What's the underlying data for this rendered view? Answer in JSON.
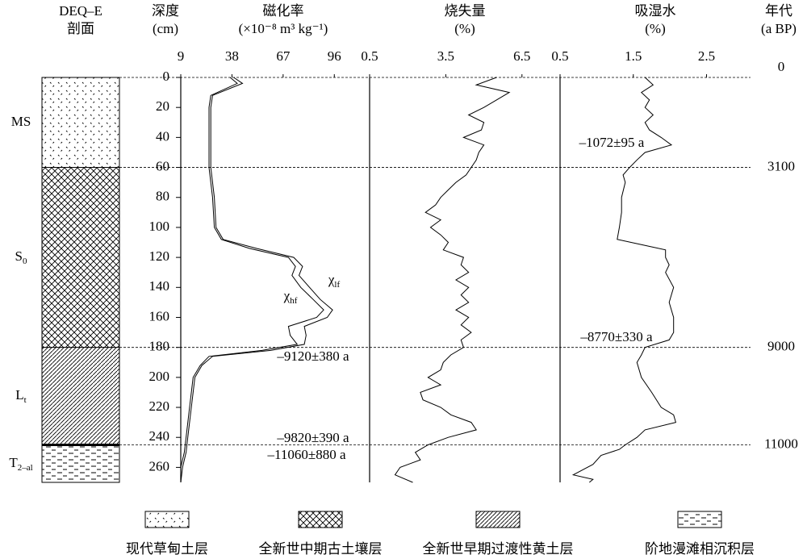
{
  "column": {
    "title": "DEQ–E",
    "subtitle": "剖面",
    "layers": [
      {
        "label": "MS",
        "top": 0,
        "bottom": 60,
        "pattern": "dots",
        "legend": "现代草甸土层"
      },
      {
        "label": "S",
        "sub": "0",
        "top": 60,
        "bottom": 180,
        "pattern": "cross",
        "legend": "全新世中期古土壤层"
      },
      {
        "label": "L",
        "sub": "t",
        "top": 180,
        "bottom": 245,
        "pattern": "diag",
        "legend": "全新世早期过渡性黄土层"
      },
      {
        "label": "T",
        "sub": "2–al",
        "top": 245,
        "bottom": 270,
        "pattern": "dash",
        "legend": "阶地漫滩相沉积层"
      }
    ]
  },
  "depth_axis": {
    "title": "深度",
    "unit": "(cm)",
    "ylim": [
      0,
      270
    ],
    "yticks": [
      0,
      20,
      40,
      60,
      80,
      100,
      120,
      140,
      160,
      180,
      200,
      220,
      240,
      260
    ]
  },
  "age_axis": {
    "title": "年代",
    "unit": "(a BP)",
    "markers": [
      {
        "depth": 0,
        "age": 0
      },
      {
        "depth": 60,
        "age": 3100
      },
      {
        "depth": 180,
        "age": 9000
      },
      {
        "depth": 245,
        "age": 11000
      }
    ]
  },
  "chart_data": [
    {
      "type": "line",
      "title": "磁化率",
      "unit": "(×10⁻⁸ m³ kg⁻¹)",
      "xlim": [
        9,
        116
      ],
      "xticks": [
        9,
        38,
        67,
        96
      ],
      "series": [
        {
          "name": "χ",
          "name_sub": "lf",
          "color": "#000",
          "depth": [
            0,
            4,
            12,
            20,
            40,
            60,
            80,
            100,
            108,
            114,
            120,
            126,
            132,
            140,
            148,
            155,
            160,
            166,
            172,
            178,
            182,
            186,
            192,
            200,
            220,
            240,
            250,
            260,
            270
          ],
          "values": [
            39,
            44,
            27,
            26,
            26,
            26,
            28,
            29,
            33,
            52,
            73,
            78,
            76,
            82,
            88,
            95,
            92,
            79,
            80,
            79,
            60,
            27,
            21,
            17,
            15,
            13,
            12,
            10,
            9
          ]
        },
        {
          "name": "χ",
          "name_sub": "hf",
          "color": "#000",
          "depth": [
            0,
            4,
            12,
            20,
            40,
            60,
            80,
            100,
            108,
            114,
            120,
            126,
            132,
            140,
            148,
            155,
            160,
            166,
            172,
            178,
            182,
            186,
            192,
            200,
            220,
            240,
            250,
            260,
            270
          ],
          "values": [
            37,
            41,
            26,
            25,
            25,
            25,
            27,
            28,
            32,
            48,
            70,
            74,
            72,
            77,
            84,
            90,
            86,
            70,
            71,
            75,
            55,
            25,
            20,
            16,
            14,
            12,
            11,
            9,
            9
          ]
        }
      ],
      "annotations": [
        "–9120±380 a",
        "–9820±390 a",
        "–11060±880 a"
      ]
    },
    {
      "type": "line",
      "title": "烧失量",
      "unit": "(%)",
      "xlim": [
        0.5,
        8
      ],
      "xticks": [
        0.5,
        3.5,
        6.5
      ],
      "series": [
        {
          "color": "#000",
          "depth": [
            0,
            5,
            10,
            20,
            25,
            30,
            35,
            40,
            45,
            50,
            55,
            60,
            65,
            70,
            75,
            80,
            85,
            90,
            95,
            100,
            105,
            110,
            115,
            120,
            125,
            130,
            135,
            140,
            145,
            150,
            155,
            160,
            165,
            170,
            175,
            180,
            185,
            190,
            195,
            200,
            205,
            210,
            215,
            220,
            225,
            230,
            235,
            240,
            245,
            250,
            255,
            260,
            265,
            270
          ],
          "values": [
            5.5,
            4.7,
            6.0,
            5.0,
            4.4,
            5.0,
            4.9,
            4.2,
            5.0,
            4.8,
            4.7,
            4.5,
            4.3,
            3.9,
            3.6,
            3.3,
            3.1,
            2.7,
            3.3,
            2.9,
            3.3,
            3.6,
            3.4,
            4.2,
            4.1,
            4.4,
            3.9,
            4.4,
            4.1,
            4.4,
            3.9,
            4.4,
            4.1,
            4.5,
            4.1,
            4.2,
            3.7,
            3.4,
            3.3,
            2.8,
            3.3,
            2.5,
            2.6,
            3.3,
            3.7,
            4.5,
            4.7,
            3.6,
            2.8,
            2.3,
            2.5,
            1.7,
            1.5,
            2.2
          ]
        }
      ]
    },
    {
      "type": "line",
      "title": "吸湿水",
      "unit": "(%)",
      "xlim": [
        0.5,
        3.1
      ],
      "xticks": [
        0.5,
        1.5,
        2.5
      ],
      "series": [
        {
          "color": "#000",
          "depth": [
            0,
            5,
            10,
            15,
            20,
            25,
            30,
            35,
            40,
            45,
            50,
            55,
            60,
            65,
            70,
            80,
            90,
            100,
            108,
            112,
            115,
            120,
            125,
            130,
            140,
            150,
            160,
            170,
            175,
            180,
            185,
            190,
            200,
            210,
            220,
            225,
            230,
            235,
            240,
            245,
            248,
            252,
            258,
            265,
            268,
            270
          ],
          "values": [
            1.66,
            1.77,
            1.61,
            1.72,
            1.66,
            1.77,
            1.66,
            1.72,
            1.88,
            2.02,
            1.66,
            1.55,
            1.45,
            1.36,
            1.39,
            1.34,
            1.34,
            1.31,
            1.28,
            1.66,
            1.94,
            1.94,
            1.99,
            1.94,
            2.05,
            1.99,
            2.05,
            2.05,
            1.99,
            1.66,
            1.61,
            1.55,
            1.61,
            1.75,
            1.88,
            2.05,
            2.08,
            1.66,
            1.55,
            1.39,
            1.31,
            1.06,
            0.95,
            0.68,
            0.95,
            0.9
          ]
        }
      ],
      "annotations": [
        "–1072±95 a",
        "–8770±330 a"
      ]
    }
  ]
}
